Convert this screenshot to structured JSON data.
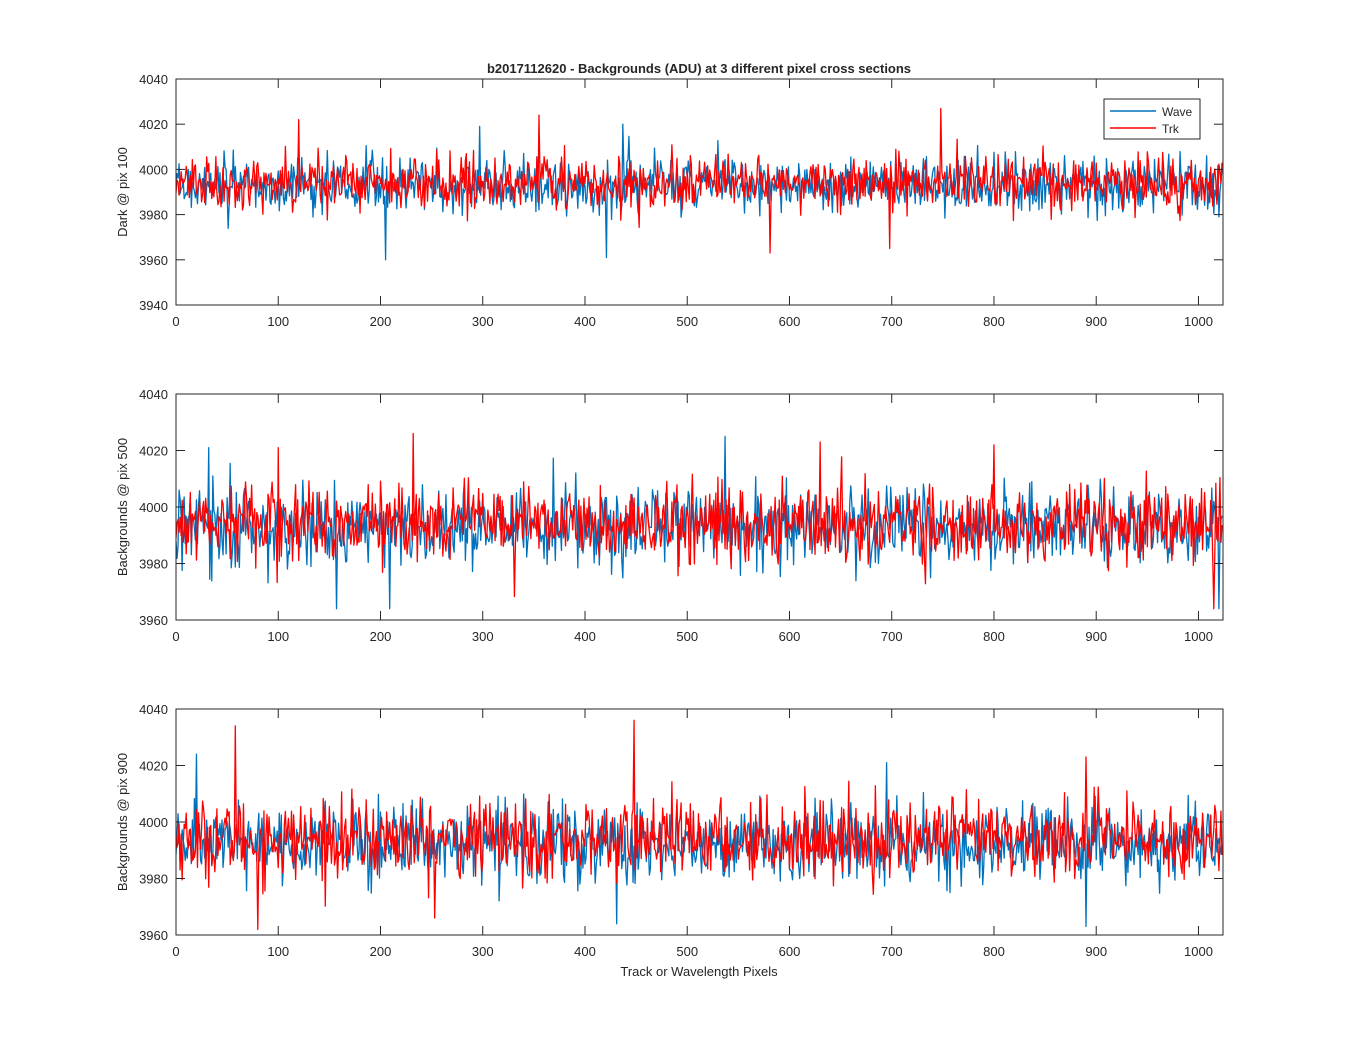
{
  "figure": {
    "title": "b2017112620 - Backgrounds (ADU) at 3 different pixel cross sections",
    "xlabel": "Track or Wavelength Pixels"
  },
  "legend": {
    "placement": "top-right",
    "entries": [
      {
        "label": "Wave",
        "color": "#0072BD"
      },
      {
        "label": "Trk",
        "color": "#FF0000"
      }
    ]
  },
  "chart_data": [
    {
      "type": "line",
      "ylabel": "Dark @ pix 100",
      "xlim": [
        0,
        1024
      ],
      "ylim": [
        3940,
        4040
      ],
      "xticks": [
        0,
        100,
        200,
        300,
        400,
        500,
        600,
        700,
        800,
        900,
        1000
      ],
      "yticks": [
        3940,
        3960,
        3980,
        4000,
        4020,
        4040
      ],
      "legend": true,
      "series": [
        {
          "name": "Wave",
          "color": "#0072BD",
          "points": 1024,
          "mean": 3993,
          "spread": 7,
          "extremes": [
            [
              205,
              3960
            ],
            [
              421,
              3961
            ],
            [
              437,
              4020
            ],
            [
              297,
              4019
            ]
          ]
        },
        {
          "name": "Trk",
          "color": "#FF0000",
          "points": 1024,
          "mean": 3994,
          "spread": 7,
          "extremes": [
            [
              355,
              4024
            ],
            [
              748,
              4027
            ],
            [
              581,
              3963
            ],
            [
              698,
              3965
            ],
            [
              120,
              4022
            ]
          ]
        }
      ]
    },
    {
      "type": "line",
      "ylabel": "Backgrounds @ pix 500",
      "xlim": [
        0,
        1024
      ],
      "ylim": [
        3960,
        4040
      ],
      "xticks": [
        0,
        100,
        200,
        300,
        400,
        500,
        600,
        700,
        800,
        900,
        1000
      ],
      "yticks": [
        3960,
        3980,
        4000,
        4020,
        4040
      ],
      "legend": false,
      "series": [
        {
          "name": "Wave",
          "color": "#0072BD",
          "points": 1024,
          "mean": 3993,
          "spread": 8,
          "extremes": [
            [
              32,
              4021
            ],
            [
              209,
              3964
            ],
            [
              537,
              4025
            ],
            [
              157,
              3964
            ],
            [
              1020,
              3964
            ]
          ]
        },
        {
          "name": "Trk",
          "color": "#FF0000",
          "points": 1024,
          "mean": 3994,
          "spread": 8,
          "extremes": [
            [
              232,
              4026
            ],
            [
              100,
              4021
            ],
            [
              630,
              4023
            ],
            [
              800,
              4022
            ],
            [
              1015,
              3964
            ]
          ]
        }
      ]
    },
    {
      "type": "line",
      "ylabel": "Backgrounds @ pix 900",
      "xlim": [
        0,
        1024
      ],
      "ylim": [
        3960,
        4040
      ],
      "xticks": [
        0,
        100,
        200,
        300,
        400,
        500,
        600,
        700,
        800,
        900,
        1000
      ],
      "yticks": [
        3960,
        3980,
        4000,
        4020,
        4040
      ],
      "legend": false,
      "series": [
        {
          "name": "Wave",
          "color": "#0072BD",
          "points": 1024,
          "mean": 3993,
          "spread": 8,
          "extremes": [
            [
              20,
              4024
            ],
            [
              431,
              3964
            ],
            [
              890,
              3963
            ],
            [
              695,
              4021
            ]
          ]
        },
        {
          "name": "Trk",
          "color": "#FF0000",
          "points": 1024,
          "mean": 3994,
          "spread": 8,
          "extremes": [
            [
              58,
              4034
            ],
            [
              448,
              4036
            ],
            [
              80,
              3962
            ],
            [
              890,
              4023
            ],
            [
              253,
              3966
            ]
          ]
        }
      ]
    }
  ]
}
